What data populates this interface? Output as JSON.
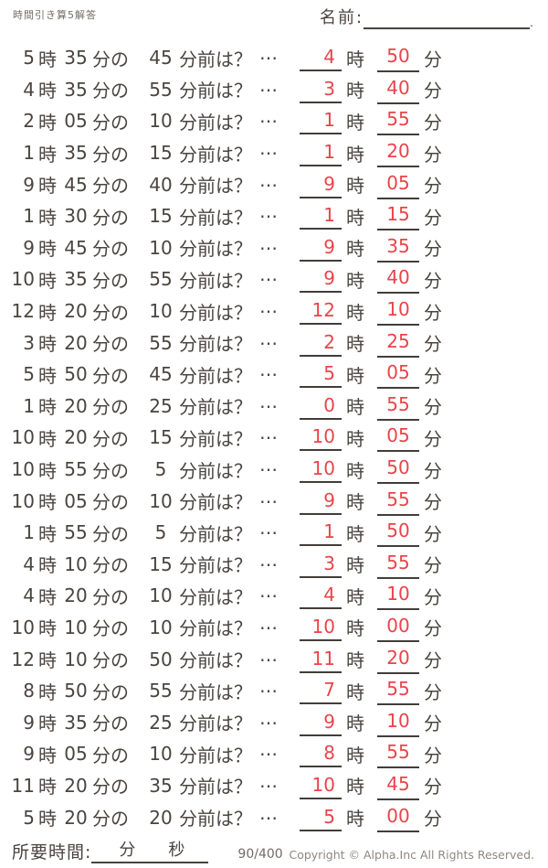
{
  "page": {
    "title": "時間引き算5解答",
    "name_label": "名前:",
    "name_line_period": "."
  },
  "labels": {
    "hour": "時",
    "minute_no": "分の",
    "before_q": "分前は？",
    "dots": "…",
    "minute": "分"
  },
  "colors": {
    "ink": "#4a443f",
    "answer_red": "#e9444a",
    "muted_gray": "#716b65",
    "copyright_gray": "#8d8781"
  },
  "problems": [
    {
      "hour": "5",
      "minute": "35",
      "subtract": "45",
      "answer_hour": "4",
      "answer_minute": "50"
    },
    {
      "hour": "4",
      "minute": "35",
      "subtract": "55",
      "answer_hour": "3",
      "answer_minute": "40"
    },
    {
      "hour": "2",
      "minute": "05",
      "subtract": "10",
      "answer_hour": "1",
      "answer_minute": "55"
    },
    {
      "hour": "1",
      "minute": "35",
      "subtract": "15",
      "answer_hour": "1",
      "answer_minute": "20"
    },
    {
      "hour": "9",
      "minute": "45",
      "subtract": "40",
      "answer_hour": "9",
      "answer_minute": "05"
    },
    {
      "hour": "1",
      "minute": "30",
      "subtract": "15",
      "answer_hour": "1",
      "answer_minute": "15"
    },
    {
      "hour": "9",
      "minute": "45",
      "subtract": "10",
      "answer_hour": "9",
      "answer_minute": "35"
    },
    {
      "hour": "10",
      "minute": "35",
      "subtract": "55",
      "answer_hour": "9",
      "answer_minute": "40"
    },
    {
      "hour": "12",
      "minute": "20",
      "subtract": "10",
      "answer_hour": "12",
      "answer_minute": "10"
    },
    {
      "hour": "3",
      "minute": "20",
      "subtract": "55",
      "answer_hour": "2",
      "answer_minute": "25"
    },
    {
      "hour": "5",
      "minute": "50",
      "subtract": "45",
      "answer_hour": "5",
      "answer_minute": "05"
    },
    {
      "hour": "1",
      "minute": "20",
      "subtract": "25",
      "answer_hour": "0",
      "answer_minute": "55"
    },
    {
      "hour": "10",
      "minute": "20",
      "subtract": "15",
      "answer_hour": "10",
      "answer_minute": "05"
    },
    {
      "hour": "10",
      "minute": "55",
      "subtract": "5",
      "answer_hour": "10",
      "answer_minute": "50"
    },
    {
      "hour": "10",
      "minute": "05",
      "subtract": "10",
      "answer_hour": "9",
      "answer_minute": "55"
    },
    {
      "hour": "1",
      "minute": "55",
      "subtract": "5",
      "answer_hour": "1",
      "answer_minute": "50"
    },
    {
      "hour": "4",
      "minute": "10",
      "subtract": "15",
      "answer_hour": "3",
      "answer_minute": "55"
    },
    {
      "hour": "4",
      "minute": "20",
      "subtract": "10",
      "answer_hour": "4",
      "answer_minute": "10"
    },
    {
      "hour": "10",
      "minute": "10",
      "subtract": "10",
      "answer_hour": "10",
      "answer_minute": "00"
    },
    {
      "hour": "12",
      "minute": "10",
      "subtract": "50",
      "answer_hour": "11",
      "answer_minute": "20"
    },
    {
      "hour": "8",
      "minute": "50",
      "subtract": "55",
      "answer_hour": "7",
      "answer_minute": "55"
    },
    {
      "hour": "9",
      "minute": "35",
      "subtract": "25",
      "answer_hour": "9",
      "answer_minute": "10"
    },
    {
      "hour": "9",
      "minute": "05",
      "subtract": "10",
      "answer_hour": "8",
      "answer_minute": "55"
    },
    {
      "hour": "11",
      "minute": "20",
      "subtract": "35",
      "answer_hour": "10",
      "answer_minute": "45"
    },
    {
      "hour": "5",
      "minute": "20",
      "subtract": "20",
      "answer_hour": "5",
      "answer_minute": "00"
    }
  ],
  "footer": {
    "time_label": "所要時間:",
    "minutes_label": "分",
    "seconds_label": "秒",
    "progress": "90/400",
    "copyright": "Copyright ©  Alpha.Inc All Rights Reserved."
  }
}
